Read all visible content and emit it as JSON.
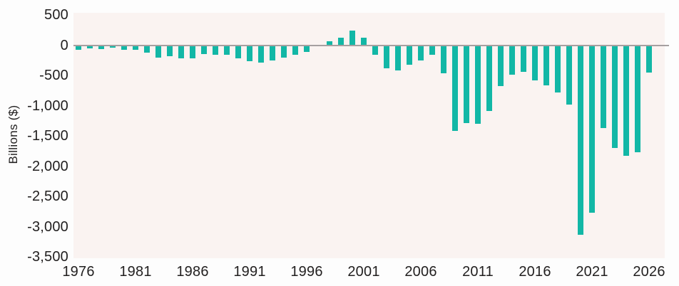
{
  "chart_data": {
    "type": "bar",
    "title": "",
    "xlabel": "",
    "ylabel": "Billions ($)",
    "x": [
      1976,
      1977,
      1978,
      1979,
      1980,
      1981,
      1982,
      1983,
      1984,
      1985,
      1986,
      1987,
      1988,
      1989,
      1990,
      1991,
      1992,
      1993,
      1994,
      1995,
      1996,
      1997,
      1998,
      1999,
      2000,
      2001,
      2002,
      2003,
      2004,
      2005,
      2006,
      2007,
      2008,
      2009,
      2010,
      2011,
      2012,
      2013,
      2014,
      2015,
      2016,
      2017,
      2018,
      2019,
      2020,
      2021,
      2022,
      2023,
      2024,
      2025,
      2026
    ],
    "values": [
      -74,
      -54,
      -59,
      -41,
      -74,
      -79,
      -128,
      -208,
      -185,
      -212,
      -221,
      -150,
      -155,
      -153,
      -221,
      -269,
      -290,
      -255,
      -203,
      -164,
      -107,
      -22,
      69,
      126,
      236,
      128,
      -158,
      -378,
      -413,
      -318,
      -248,
      -161,
      -459,
      -1413,
      -1294,
      -1300,
      -1087,
      -680,
      -485,
      -442,
      -585,
      -665,
      -779,
      -984,
      -3132,
      -2775,
      -1375,
      -1695,
      -1834,
      -1775,
      -450
    ],
    "y_ticks": [
      500,
      0,
      -500,
      -1000,
      -1500,
      -2000,
      -2500,
      -3000,
      -3500
    ],
    "y_tick_labels": [
      "500",
      "0",
      "-500",
      "-1,000",
      "-1,500",
      "-2,000",
      "-2,500",
      "-3,000",
      "-3,500"
    ],
    "x_tick_years": [
      1976,
      1981,
      1986,
      1991,
      1996,
      2001,
      2006,
      2011,
      2016,
      2021,
      2026
    ],
    "x_tick_labels": [
      "1976",
      "1981",
      "1986",
      "1991",
      "1996",
      "2001",
      "2006",
      "2011",
      "2016",
      "2021",
      "2026"
    ],
    "ylim": [
      -3500,
      500
    ],
    "grid": false,
    "legend": false,
    "colors": {
      "bar": "#12b7a6",
      "plot_background": "#faf3f1",
      "page_background": "#fdfdfd",
      "zero_line": "#a6a0a0",
      "text": "#211f1f"
    }
  }
}
